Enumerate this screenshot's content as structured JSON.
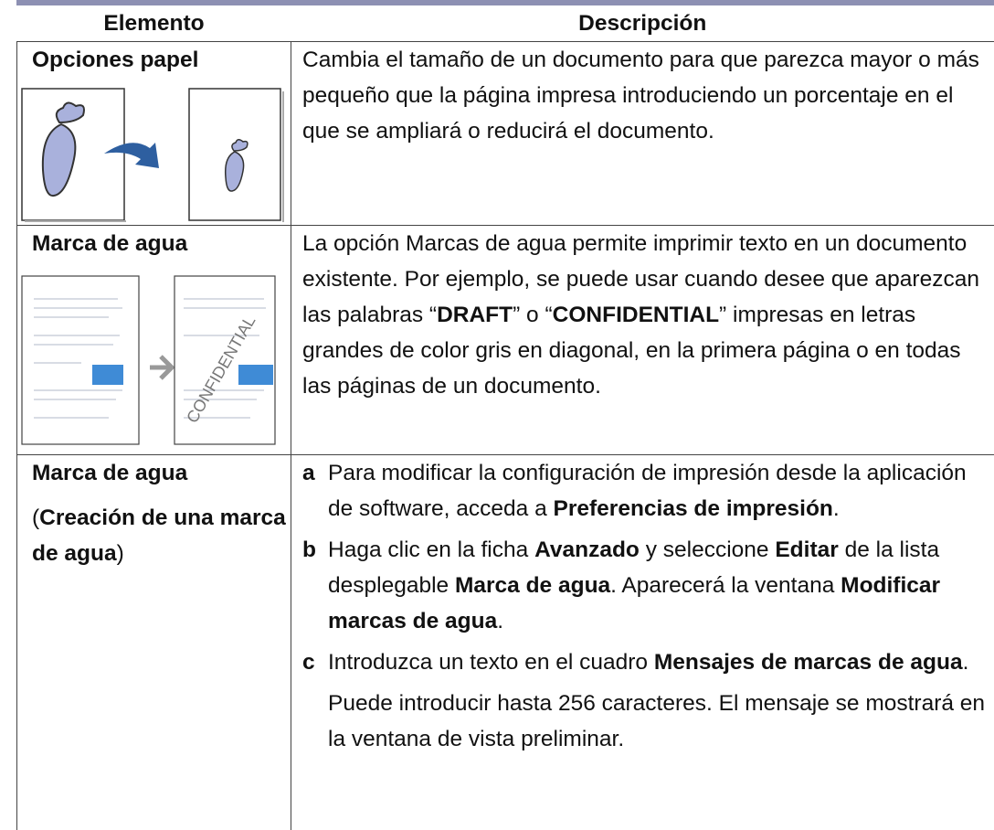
{
  "table": {
    "headers": [
      "Elemento",
      "Descripción"
    ],
    "rows": [
      {
        "item": [
          [
            {
              "t": "Opciones papel",
              "b": true
            }
          ]
        ],
        "description": [
          [
            "Cambia el tamaño de un documento para que parezca mayor o más pequeño que la página impresa introduciendo un porcentaje en el que se ampliará o reducirá el documento."
          ]
        ]
      },
      {
        "item": [
          [
            {
              "t": "Marca de agua",
              "b": true
            }
          ]
        ],
        "illustration_text": "CONFIDENTIAL",
        "description": [
          [
            "La opción Marcas de agua permite imprimir texto en un documento existente. Por ejemplo, se puede usar cuando desee que aparezcan las palabras “",
            {
              "t": "DRAFT",
              "b": true
            },
            "” o “",
            {
              "t": "CONFIDENTIAL",
              "b": true
            },
            "” impresas en letras grandes de color gris en diagonal, en la primera página o en todas las páginas de un documento."
          ]
        ]
      },
      {
        "item": [
          [
            {
              "t": "Marca de agua",
              "b": true
            }
          ],
          [
            "(",
            {
              "t": "Creación de una marca de agua",
              "b": true
            },
            ")"
          ]
        ],
        "steps": [
          {
            "label": "a",
            "text": [
              "Para modificar la configuración de impresión desde la aplicación de software, acceda a ",
              {
                "t": "Preferencias de impresión",
                "b": true
              },
              "."
            ]
          },
          {
            "label": "b",
            "text": [
              "Haga clic en la ficha ",
              {
                "t": "Avanzado",
                "b": true
              },
              " y seleccione ",
              {
                "t": "Editar",
                "b": true
              },
              " de la lista desplegable ",
              {
                "t": "Marca de agua",
                "b": true
              },
              ". Aparecerá la ventana ",
              {
                "t": "Modificar marcas de agua",
                "b": true
              },
              "."
            ]
          },
          {
            "label": "c",
            "text": [
              "Introduzca un texto en el cuadro ",
              {
                "t": "Mensajes de marcas de agua",
                "b": true
              },
              "."
            ]
          }
        ],
        "note": [
          "Puede introducir hasta 256 caracteres. El mensaje se mostrará en la ventana de vista preliminar."
        ]
      }
    ]
  }
}
